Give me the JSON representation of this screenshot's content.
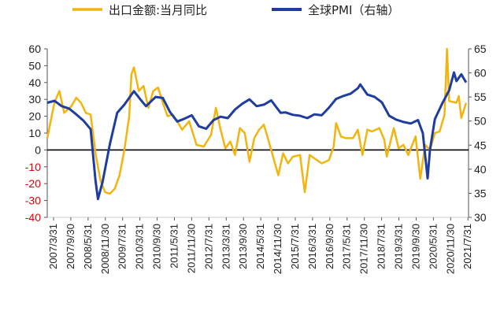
{
  "chart_data": {
    "type": "line",
    "legend": {
      "placement": "top"
    },
    "series": [
      {
        "name": "出口金额:当月同比",
        "axis": "left",
        "color": "#F2B40F",
        "points": [
          [
            "2007-03-31",
            7
          ],
          [
            "2007-06-30",
            28
          ],
          [
            "2007-08-31",
            35
          ],
          [
            "2007-10-31",
            22
          ],
          [
            "2008-01-31",
            26
          ],
          [
            "2008-03-31",
            31
          ],
          [
            "2008-05-31",
            28
          ],
          [
            "2008-07-31",
            22
          ],
          [
            "2008-09-30",
            21
          ],
          [
            "2008-11-30",
            -2
          ],
          [
            "2009-01-31",
            -18
          ],
          [
            "2009-03-31",
            -25
          ],
          [
            "2009-05-31",
            -26
          ],
          [
            "2009-07-31",
            -23
          ],
          [
            "2009-09-30",
            -15
          ],
          [
            "2009-11-30",
            0
          ],
          [
            "2010-01-31",
            20
          ],
          [
            "2010-02-28",
            45
          ],
          [
            "2010-03-31",
            49
          ],
          [
            "2010-05-31",
            35
          ],
          [
            "2010-07-31",
            38
          ],
          [
            "2010-09-30",
            25
          ],
          [
            "2010-11-30",
            35
          ],
          [
            "2011-01-31",
            37
          ],
          [
            "2011-03-31",
            28
          ],
          [
            "2011-05-31",
            20
          ],
          [
            "2011-07-31",
            21
          ],
          [
            "2011-09-30",
            17
          ],
          [
            "2011-11-30",
            12
          ],
          [
            "2012-02-28",
            17
          ],
          [
            "2012-05-31",
            3
          ],
          [
            "2012-08-31",
            2
          ],
          [
            "2012-11-30",
            9
          ],
          [
            "2013-01-31",
            25
          ],
          [
            "2013-03-31",
            12
          ],
          [
            "2013-05-31",
            1
          ],
          [
            "2013-07-31",
            5
          ],
          [
            "2013-09-30",
            -3
          ],
          [
            "2013-11-30",
            13
          ],
          [
            "2014-01-31",
            10
          ],
          [
            "2014-03-31",
            -7
          ],
          [
            "2014-05-31",
            7
          ],
          [
            "2014-07-31",
            12
          ],
          [
            "2014-09-30",
            15
          ],
          [
            "2014-11-30",
            5
          ],
          [
            "2015-03-31",
            -15
          ],
          [
            "2015-05-31",
            -2
          ],
          [
            "2015-07-31",
            -8
          ],
          [
            "2015-09-30",
            -4
          ],
          [
            "2015-12-31",
            -3
          ],
          [
            "2016-02-29",
            -25
          ],
          [
            "2016-04-30",
            -3
          ],
          [
            "2016-06-30",
            -5
          ],
          [
            "2016-09-30",
            -8
          ],
          [
            "2016-12-31",
            -6
          ],
          [
            "2017-02-28",
            2
          ],
          [
            "2017-03-31",
            16
          ],
          [
            "2017-05-31",
            8
          ],
          [
            "2017-07-31",
            7
          ],
          [
            "2017-10-31",
            7
          ],
          [
            "2017-12-31",
            12
          ],
          [
            "2018-02-28",
            -3
          ],
          [
            "2018-04-30",
            12
          ],
          [
            "2018-06-30",
            11
          ],
          [
            "2018-09-30",
            13
          ],
          [
            "2018-11-30",
            6
          ],
          [
            "2018-12-31",
            -4
          ],
          [
            "2019-03-31",
            13
          ],
          [
            "2019-05-31",
            1
          ],
          [
            "2019-07-31",
            3
          ],
          [
            "2019-09-30",
            -3
          ],
          [
            "2019-12-31",
            8
          ],
          [
            "2020-02-29",
            -17
          ],
          [
            "2020-04-30",
            3
          ],
          [
            "2020-06-30",
            0
          ],
          [
            "2020-08-31",
            10
          ],
          [
            "2020-10-31",
            11
          ],
          [
            "2020-12-31",
            21
          ],
          [
            "2021-01-31",
            60
          ],
          [
            "2021-02-28",
            29
          ],
          [
            "2021-05-31",
            28
          ],
          [
            "2021-06-30",
            32
          ],
          [
            "2021-07-31",
            19
          ],
          [
            "2021-09-30",
            28
          ]
        ]
      },
      {
        "name": "全球PMI（右轴）",
        "axis": "right",
        "color": "#1F3D9E",
        "points": [
          [
            "2007-03-31",
            53.8
          ],
          [
            "2007-06-30",
            54.2
          ],
          [
            "2007-09-30",
            53.1
          ],
          [
            "2007-12-31",
            52.6
          ],
          [
            "2008-03-31",
            51.4
          ],
          [
            "2008-06-30",
            50.1
          ],
          [
            "2008-09-30",
            48.3
          ],
          [
            "2008-11-30",
            37.6
          ],
          [
            "2008-12-31",
            33.8
          ],
          [
            "2009-02-28",
            37.4
          ],
          [
            "2009-05-31",
            45.2
          ],
          [
            "2009-08-31",
            51.7
          ],
          [
            "2009-11-30",
            53.4
          ],
          [
            "2010-03-31",
            56.2
          ],
          [
            "2010-06-30",
            54.3
          ],
          [
            "2010-08-31",
            53.1
          ],
          [
            "2010-12-31",
            55.0
          ],
          [
            "2011-03-31",
            54.8
          ],
          [
            "2011-06-30",
            51.9
          ],
          [
            "2011-09-30",
            49.9
          ],
          [
            "2011-12-31",
            50.5
          ],
          [
            "2012-03-31",
            51.2
          ],
          [
            "2012-06-30",
            48.9
          ],
          [
            "2012-09-30",
            48.4
          ],
          [
            "2012-12-31",
            50.2
          ],
          [
            "2013-03-31",
            50.9
          ],
          [
            "2013-06-30",
            50.6
          ],
          [
            "2013-09-30",
            52.4
          ],
          [
            "2013-12-31",
            53.6
          ],
          [
            "2014-03-31",
            54.5
          ],
          [
            "2014-06-30",
            53.1
          ],
          [
            "2014-09-30",
            53.4
          ],
          [
            "2014-12-31",
            54.3
          ],
          [
            "2015-02-28",
            53.0
          ],
          [
            "2015-04-30",
            51.7
          ],
          [
            "2015-06-30",
            51.8
          ],
          [
            "2015-09-30",
            51.3
          ],
          [
            "2015-12-31",
            51.1
          ],
          [
            "2016-03-31",
            50.6
          ],
          [
            "2016-06-30",
            51.4
          ],
          [
            "2016-09-30",
            51.2
          ],
          [
            "2016-12-31",
            52.8
          ],
          [
            "2017-03-31",
            54.6
          ],
          [
            "2017-06-30",
            55.2
          ],
          [
            "2017-09-30",
            55.7
          ],
          [
            "2017-12-31",
            56.8
          ],
          [
            "2018-01-31",
            57.6
          ],
          [
            "2018-04-30",
            55.5
          ],
          [
            "2018-07-31",
            55.0
          ],
          [
            "2018-10-31",
            53.9
          ],
          [
            "2019-01-31",
            51.1
          ],
          [
            "2019-04-30",
            50.3
          ],
          [
            "2019-07-31",
            49.8
          ],
          [
            "2019-10-31",
            49.5
          ],
          [
            "2020-01-31",
            50.2
          ],
          [
            "2020-03-31",
            47.5
          ],
          [
            "2020-05-31",
            38.1
          ],
          [
            "2020-06-30",
            44.0
          ],
          [
            "2020-08-31",
            50.4
          ],
          [
            "2020-11-30",
            53.6
          ],
          [
            "2021-02-28",
            56.4
          ],
          [
            "2021-04-30",
            60.1
          ],
          [
            "2021-05-31",
            58.3
          ],
          [
            "2021-07-31",
            59.7
          ],
          [
            "2021-09-30",
            58.0
          ]
        ]
      }
    ],
    "y_left": {
      "ylim": [
        -40,
        60
      ],
      "ticks": [
        60,
        50,
        40,
        30,
        20,
        10,
        0,
        -10,
        -20,
        -30,
        -40
      ]
    },
    "y_right": {
      "ylim": [
        30,
        65
      ],
      "ticks": [
        65,
        60,
        55,
        50,
        45,
        40,
        35,
        30
      ]
    },
    "x_ticks": [
      "2007/3/31",
      "2007/9/30",
      "2008/5/31",
      "2008/11/30",
      "2009/7/31",
      "2010/3/31",
      "2010/9/30",
      "2011/5/31",
      "2011/11/30",
      "2012/7/31",
      "2013/3/31",
      "2013/9/30",
      "2014/5/31",
      "2014/11/30",
      "2015/7/31",
      "2016/3/31",
      "2016/9/30",
      "2017/5/31",
      "2017/11/30",
      "2018/7/31",
      "2019/3/31",
      "2019/9/30",
      "2020/5/31",
      "2020/11/30",
      "2021/7/31"
    ],
    "x_range": [
      "2007-03-31",
      "2021-10-31"
    ],
    "grid": false,
    "zero_line": true
  }
}
